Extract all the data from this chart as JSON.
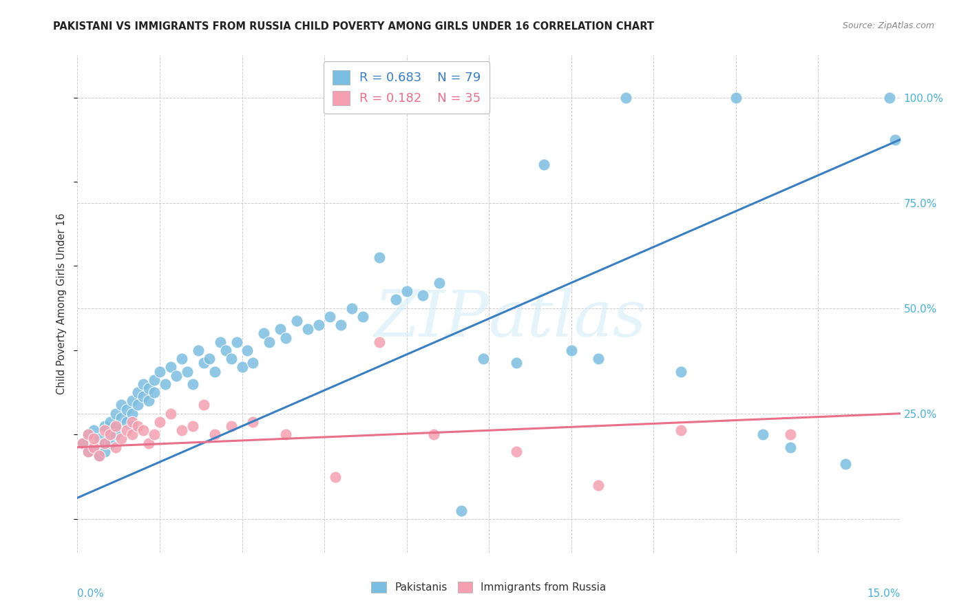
{
  "title": "PAKISTANI VS IMMIGRANTS FROM RUSSIA CHILD POVERTY AMONG GIRLS UNDER 16 CORRELATION CHART",
  "source": "Source: ZipAtlas.com",
  "ylabel": "Child Poverty Among Girls Under 16",
  "xlim": [
    0,
    0.15
  ],
  "ylim": [
    -0.08,
    1.1
  ],
  "R_pakistani": 0.683,
  "N_pakistani": 79,
  "R_russia": 0.182,
  "N_russia": 35,
  "color_pakistani": "#7bbde0",
  "color_russia": "#f4a0b0",
  "color_line_pakistani": "#3a7fc1",
  "color_line_russia": "#e8708a",
  "watermark": "ZIPAtlas",
  "legend_label_pakistani": "Pakistanis",
  "legend_label_russia": "Immigrants from Russia",
  "pak_x": [
    0.001,
    0.002,
    0.002,
    0.003,
    0.003,
    0.004,
    0.004,
    0.005,
    0.005,
    0.005,
    0.006,
    0.006,
    0.006,
    0.007,
    0.007,
    0.007,
    0.008,
    0.008,
    0.009,
    0.009,
    0.01,
    0.01,
    0.01,
    0.011,
    0.011,
    0.012,
    0.012,
    0.013,
    0.013,
    0.014,
    0.014,
    0.015,
    0.016,
    0.017,
    0.018,
    0.019,
    0.02,
    0.021,
    0.022,
    0.023,
    0.024,
    0.025,
    0.026,
    0.027,
    0.028,
    0.029,
    0.03,
    0.031,
    0.032,
    0.034,
    0.035,
    0.037,
    0.038,
    0.04,
    0.042,
    0.044,
    0.046,
    0.048,
    0.05,
    0.052,
    0.055,
    0.058,
    0.06,
    0.063,
    0.066,
    0.07,
    0.074,
    0.08,
    0.085,
    0.09,
    0.095,
    0.1,
    0.11,
    0.12,
    0.125,
    0.13,
    0.14,
    0.148,
    0.149
  ],
  "pak_y": [
    0.18,
    0.16,
    0.2,
    0.17,
    0.21,
    0.15,
    0.19,
    0.18,
    0.22,
    0.16,
    0.2,
    0.23,
    0.18,
    0.22,
    0.25,
    0.2,
    0.24,
    0.27,
    0.23,
    0.26,
    0.25,
    0.28,
    0.22,
    0.27,
    0.3,
    0.29,
    0.32,
    0.31,
    0.28,
    0.33,
    0.3,
    0.35,
    0.32,
    0.36,
    0.34,
    0.38,
    0.35,
    0.32,
    0.4,
    0.37,
    0.38,
    0.35,
    0.42,
    0.4,
    0.38,
    0.42,
    0.36,
    0.4,
    0.37,
    0.44,
    0.42,
    0.45,
    0.43,
    0.47,
    0.45,
    0.46,
    0.48,
    0.46,
    0.5,
    0.48,
    0.62,
    0.52,
    0.54,
    0.53,
    0.56,
    0.02,
    0.38,
    0.37,
    0.84,
    0.4,
    0.38,
    1.0,
    0.35,
    1.0,
    0.2,
    0.17,
    0.13,
    1.0,
    0.9
  ],
  "rus_x": [
    0.001,
    0.002,
    0.002,
    0.003,
    0.003,
    0.004,
    0.005,
    0.005,
    0.006,
    0.007,
    0.007,
    0.008,
    0.009,
    0.01,
    0.01,
    0.011,
    0.012,
    0.013,
    0.014,
    0.015,
    0.017,
    0.019,
    0.021,
    0.023,
    0.025,
    0.028,
    0.032,
    0.038,
    0.047,
    0.055,
    0.065,
    0.08,
    0.095,
    0.11,
    0.13
  ],
  "rus_y": [
    0.18,
    0.16,
    0.2,
    0.17,
    0.19,
    0.15,
    0.21,
    0.18,
    0.2,
    0.22,
    0.17,
    0.19,
    0.21,
    0.2,
    0.23,
    0.22,
    0.21,
    0.18,
    0.2,
    0.23,
    0.25,
    0.21,
    0.22,
    0.27,
    0.2,
    0.22,
    0.23,
    0.2,
    0.1,
    0.42,
    0.2,
    0.16,
    0.08,
    0.21,
    0.2
  ]
}
